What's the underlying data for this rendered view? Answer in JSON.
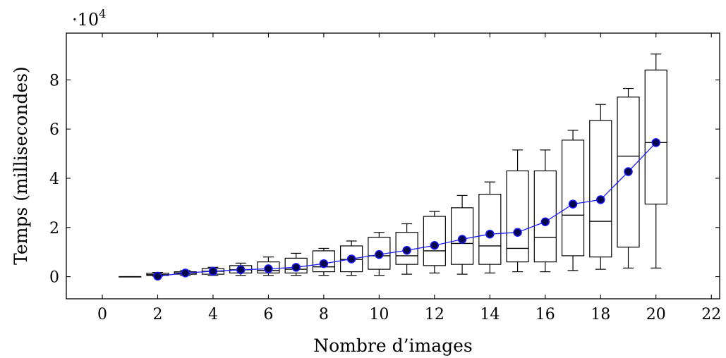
{
  "chart_data": {
    "type": "boxplot",
    "xlabel": "Nombre d’images",
    "ylabel": "Temps (millisecondes)",
    "y_multiplier_label": "·10",
    "y_multiplier_exp": "4",
    "xlim": [
      -1.3,
      22.3
    ],
    "ylim": [
      -0.9,
      9.9
    ],
    "x_ticks": [
      0,
      2,
      4,
      6,
      8,
      10,
      12,
      14,
      16,
      18,
      20,
      22
    ],
    "y_ticks": [
      0,
      2,
      4,
      6,
      8
    ],
    "boxes": [
      {
        "x": 1,
        "min": 0.0,
        "q1": 0.0,
        "median": 0.0,
        "q3": 0.0,
        "max": 0.0
      },
      {
        "x": 2,
        "min": 0.02,
        "q1": 0.05,
        "median": 0.08,
        "q3": 0.14,
        "max": 0.17
      },
      {
        "x": 3,
        "min": 0.05,
        "q1": 0.1,
        "median": 0.15,
        "q3": 0.2,
        "max": 0.25
      },
      {
        "x": 4,
        "min": 0.05,
        "q1": 0.1,
        "median": 0.22,
        "q3": 0.33,
        "max": 0.38
      },
      {
        "x": 5,
        "min": 0.05,
        "q1": 0.15,
        "median": 0.28,
        "q3": 0.45,
        "max": 0.55
      },
      {
        "x": 6,
        "min": 0.05,
        "q1": 0.15,
        "median": 0.25,
        "q3": 0.6,
        "max": 0.8
      },
      {
        "x": 7,
        "min": 0.05,
        "q1": 0.15,
        "median": 0.3,
        "q3": 0.75,
        "max": 0.95
      },
      {
        "x": 8,
        "min": 0.05,
        "q1": 0.2,
        "median": 0.4,
        "q3": 1.05,
        "max": 1.15
      },
      {
        "x": 9,
        "min": 0.05,
        "q1": 0.2,
        "median": 0.7,
        "q3": 1.25,
        "max": 1.45
      },
      {
        "x": 10,
        "min": 0.05,
        "q1": 0.3,
        "median": 0.85,
        "q3": 1.6,
        "max": 1.8
      },
      {
        "x": 11,
        "min": 0.1,
        "q1": 0.5,
        "median": 0.85,
        "q3": 1.8,
        "max": 2.15
      },
      {
        "x": 12,
        "min": 0.15,
        "q1": 0.45,
        "median": 1.05,
        "q3": 2.45,
        "max": 2.65
      },
      {
        "x": 13,
        "min": 0.1,
        "q1": 0.5,
        "median": 1.35,
        "q3": 2.8,
        "max": 3.3
      },
      {
        "x": 14,
        "min": 0.15,
        "q1": 0.5,
        "median": 1.25,
        "q3": 3.35,
        "max": 3.85
      },
      {
        "x": 15,
        "min": 0.2,
        "q1": 0.6,
        "median": 1.15,
        "q3": 4.3,
        "max": 5.15
      },
      {
        "x": 16,
        "min": 0.2,
        "q1": 0.6,
        "median": 1.6,
        "q3": 4.3,
        "max": 5.15
      },
      {
        "x": 17,
        "min": 0.25,
        "q1": 0.85,
        "median": 2.5,
        "q3": 5.55,
        "max": 5.95
      },
      {
        "x": 18,
        "min": 0.3,
        "q1": 0.8,
        "median": 2.25,
        "q3": 6.35,
        "max": 7.0
      },
      {
        "x": 19,
        "min": 0.35,
        "q1": 1.2,
        "median": 4.9,
        "q3": 7.3,
        "max": 7.65
      },
      {
        "x": 20,
        "min": 0.35,
        "q1": 2.95,
        "median": 5.45,
        "q3": 8.4,
        "max": 9.05
      }
    ],
    "mean_series": {
      "x": [
        2,
        3,
        4,
        5,
        6,
        7,
        8,
        9,
        10,
        11,
        12,
        13,
        14,
        15,
        16,
        17,
        18,
        19,
        20
      ],
      "y": [
        0.02,
        0.15,
        0.22,
        0.28,
        0.32,
        0.38,
        0.53,
        0.72,
        0.9,
        1.07,
        1.27,
        1.52,
        1.73,
        1.8,
        2.23,
        2.95,
        3.13,
        4.27,
        5.45
      ]
    },
    "colors": {
      "mean_line": "#1a1aff",
      "mean_fill": "#06064a"
    }
  }
}
